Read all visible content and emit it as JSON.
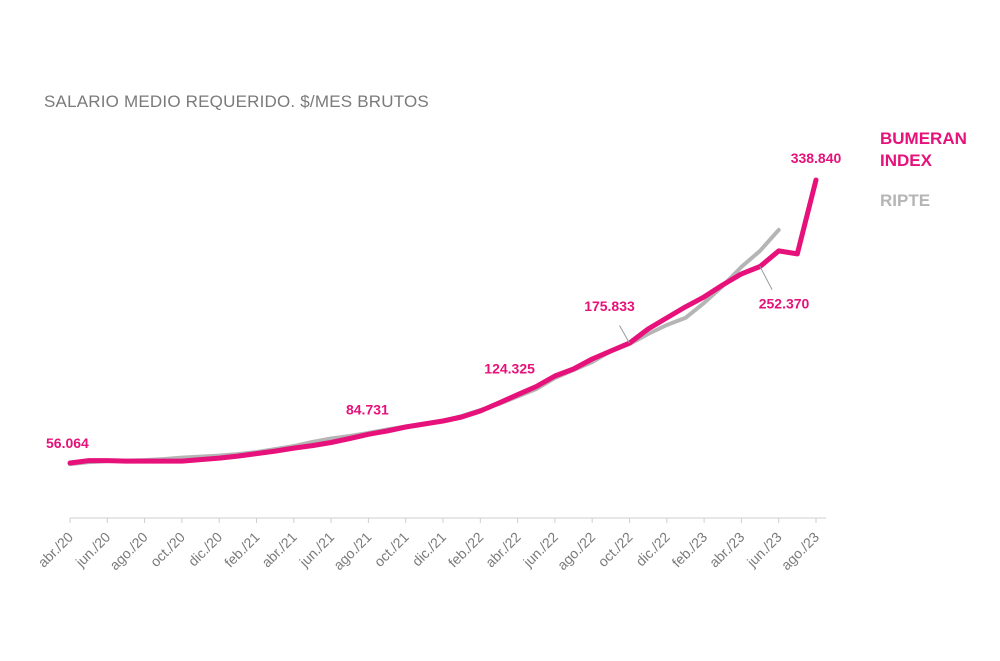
{
  "chart_data": {
    "type": "line",
    "title": "SALARIO MEDIO REQUERIDO. $/MES BRUTOS",
    "xlabel": "",
    "ylabel": "",
    "ylim": [
      0,
      360000
    ],
    "grid": false,
    "legend_placement": "right",
    "categories": [
      "abr./20",
      "may./20",
      "jun./20",
      "jul./20",
      "ago./20",
      "sep./20",
      "oct./20",
      "nov./20",
      "dic./20",
      "ene./21",
      "feb./21",
      "mar./21",
      "abr./21",
      "may./21",
      "jun./21",
      "jul./21",
      "ago./21",
      "sep./21",
      "oct./21",
      "nov./21",
      "dic./21",
      "ene./22",
      "feb./22",
      "mar./22",
      "abr./22",
      "may./22",
      "jun./22",
      "jul./22",
      "ago./22",
      "sep./22",
      "oct./22",
      "nov./22",
      "dic./22",
      "ene./23",
      "feb./23",
      "mar./23",
      "abr./23",
      "may./23",
      "jun./23",
      "jul./23",
      "ago./23"
    ],
    "tick_labels": [
      "abr./20",
      "jun./20",
      "ago./20",
      "oct./20",
      "dic./20",
      "feb./21",
      "abr./21",
      "jun./21",
      "ago./21",
      "oct./21",
      "dic./21",
      "feb./22",
      "abr./22",
      "jun./22",
      "ago./22",
      "oct./22",
      "dic./22",
      "feb./23",
      "abr./23",
      "jun./23",
      "ago./23"
    ],
    "series": [
      {
        "name": "BUMERAN INDEX",
        "color": "#e6117a",
        "values": [
          56064,
          58500,
          58500,
          58000,
          58000,
          58000,
          58000,
          59500,
          61000,
          63000,
          65500,
          68000,
          71000,
          73500,
          76500,
          80500,
          84731,
          88000,
          92000,
          95000,
          98000,
          102000,
          108000,
          116000,
          124325,
          132500,
          143000,
          150000,
          160000,
          168000,
          175833,
          190000,
          201000,
          212000,
          222000,
          234000,
          245000,
          252370,
          268000,
          265000,
          338840
        ]
      },
      {
        "name": "RIPTE",
        "color": "#b5b5b5",
        "values": [
          55000,
          57000,
          58000,
          58500,
          59000,
          60000,
          61500,
          62500,
          63500,
          65000,
          67000,
          70000,
          73000,
          77000,
          80500,
          83000,
          86000,
          89500,
          92500,
          95500,
          98000,
          103000,
          109000,
          115000,
          122500,
          130000,
          141000,
          149000,
          157000,
          168000,
          175000,
          185000,
          194000,
          201000,
          216000,
          233000,
          252000,
          268000,
          289000,
          null,
          null
        ]
      }
    ],
    "annotations": [
      {
        "label": "56.064",
        "index": 0,
        "series": 0
      },
      {
        "label": "84.731",
        "index": 16,
        "series": 0
      },
      {
        "label": "124.325",
        "index": 24,
        "series": 0
      },
      {
        "label": "175.833",
        "index": 30,
        "series": 0
      },
      {
        "label": "252.370",
        "index": 37,
        "series": 0
      },
      {
        "label": "338.840",
        "index": 40,
        "series": 0
      }
    ]
  }
}
